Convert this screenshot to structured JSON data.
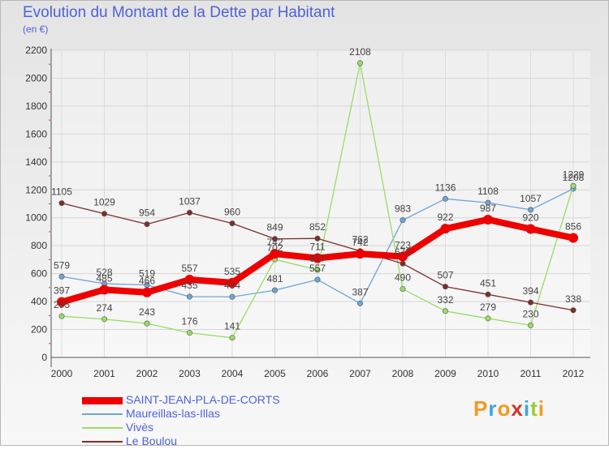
{
  "title": "Evolution du Montant de la Dette par Habitant",
  "subtitle": "(en €)",
  "logo": {
    "letters": [
      "P",
      "r",
      "o",
      "x",
      "i",
      "t",
      "i"
    ],
    "colors": [
      "#f29a1e",
      "#3ea6dd",
      "#f29a1e",
      "#d8322b",
      "#3ea6dd",
      "#9acb3c",
      "#f29a1e"
    ]
  },
  "chart_data": {
    "type": "line",
    "x": [
      "2000",
      "2001",
      "2002",
      "2003",
      "2004",
      "2005",
      "2006",
      "2007",
      "2008",
      "2009",
      "2010",
      "2011",
      "2012"
    ],
    "y_ticks": [
      0,
      200,
      400,
      600,
      800,
      1000,
      1200,
      1400,
      1600,
      1800,
      2000,
      2200
    ],
    "ylim": [
      0,
      2200
    ],
    "grid": true,
    "legend_position": "bottom-left",
    "series": [
      {
        "name": "SAINT-JEAN-PLA-DE-CORTS",
        "color": "#ee0000",
        "width": 8,
        "values": [
          397,
          485,
          466,
          557,
          535,
          742,
          711,
          742,
          723,
          922,
          987,
          920,
          856
        ],
        "labels": [
          "397",
          "485",
          "466",
          "557",
          "535",
          "742",
          "711",
          "742",
          "723",
          "922",
          "987",
          "920",
          "856"
        ]
      },
      {
        "name": "Maureillas-las-Illas",
        "color": "#6fa5d8",
        "width": 1.3,
        "values": [
          579,
          528,
          519,
          435,
          434,
          481,
          557,
          387,
          983,
          1136,
          1108,
          1057,
          1208
        ],
        "labels": [
          "579",
          "528",
          "519",
          "435",
          "434",
          "481",
          "557",
          "387",
          "983",
          "1136",
          "1108",
          "1057",
          "1208"
        ]
      },
      {
        "name": "Vivès",
        "color": "#99dd66",
        "width": 1.3,
        "values": [
          295,
          274,
          243,
          176,
          141,
          702,
          627,
          2108,
          490,
          332,
          279,
          230,
          1229
        ],
        "labels": [
          "295",
          "274",
          "243",
          "176",
          "141",
          "702",
          "627",
          "2108",
          "490",
          "332",
          "279",
          "230",
          "1229"
        ]
      },
      {
        "name": "Le Boulou",
        "color": "#7a2f2f",
        "width": 1.3,
        "values": [
          1105,
          1029,
          954,
          1037,
          960,
          849,
          852,
          762,
          672,
          507,
          451,
          394,
          338
        ],
        "labels": [
          "1105",
          "1029",
          "954",
          "1037",
          "960",
          "849",
          "852",
          "762",
          "672",
          "507",
          "451",
          "394",
          "338"
        ]
      }
    ]
  }
}
